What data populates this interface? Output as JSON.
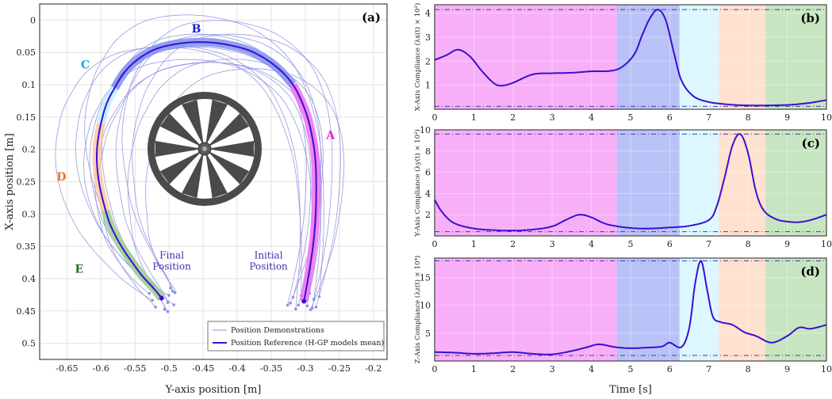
{
  "colors": {
    "reference": "#3a0fd0",
    "demonstrations": "#8f8fe0",
    "phase_A": "#f070f0",
    "phase_B": "#8090f0",
    "phase_C": "#bff0ff",
    "phase_D": "#ffc8a8",
    "phase_E": "#9bcf90",
    "label_A": "#e020c0",
    "label_B": "#2020c0",
    "label_C": "#20a0e0",
    "label_D": "#f07020",
    "label_E": "#207020",
    "final_label": "#4a2ab0"
  },
  "chart_data": [
    {
      "type": "line",
      "panel_label": "(a)",
      "xlabel": "Y-axis position [m]",
      "ylabel": "X-axis position [m]",
      "xlim": [
        -0.69,
        -0.18
      ],
      "ylim": [
        0.525,
        -0.025
      ],
      "y_reversed": true,
      "x_ticks": [
        "-0.65",
        "-0.6",
        "-0.55",
        "-0.5",
        "-0.45",
        "-0.4",
        "-0.35",
        "-0.3",
        "-0.25",
        "-0.2"
      ],
      "y_ticks": [
        "0",
        "0.05",
        "0.1",
        "0.15",
        "0.2",
        "0.25",
        "0.3",
        "0.35",
        "0.4",
        "0.45",
        "0.5"
      ],
      "grid": true,
      "legend": {
        "placement": "bottom-right",
        "entries": [
          "Position Demonstrations",
          "Position Reference (H-GP models mean)"
        ]
      },
      "reference": {
        "x": [
          -0.302,
          -0.296,
          -0.29,
          -0.286,
          -0.284,
          -0.285,
          -0.29,
          -0.3,
          -0.318,
          -0.345,
          -0.38,
          -0.42,
          -0.455,
          -0.49,
          -0.52,
          -0.545,
          -0.565,
          -0.58,
          -0.592,
          -0.6,
          -0.605,
          -0.606,
          -0.603,
          -0.598,
          -0.593,
          -0.587,
          -0.578,
          -0.567,
          -0.554,
          -0.54,
          -0.527,
          -0.517,
          -0.511
        ],
        "y": [
          0.435,
          0.4,
          0.36,
          0.32,
          0.27,
          0.22,
          0.18,
          0.14,
          0.1,
          0.07,
          0.048,
          0.037,
          0.034,
          0.037,
          0.045,
          0.06,
          0.08,
          0.105,
          0.13,
          0.16,
          0.19,
          0.22,
          0.25,
          0.275,
          0.295,
          0.315,
          0.335,
          0.355,
          0.375,
          0.395,
          0.41,
          0.422,
          0.43
        ]
      },
      "phases": [
        {
          "label": "A",
          "start": 0,
          "end": 8
        },
        {
          "label": "B",
          "start": 8,
          "end": 17
        },
        {
          "label": "C",
          "start": 17,
          "end": 19
        },
        {
          "label": "D",
          "start": 19,
          "end": 24
        },
        {
          "label": "E",
          "start": 24,
          "end": 32
        }
      ],
      "phase_labels": [
        {
          "text": "A",
          "x": -0.263,
          "y": 0.178
        },
        {
          "text": "B",
          "x": -0.46,
          "y": 0.013
        },
        {
          "text": "C",
          "x": -0.623,
          "y": 0.069
        },
        {
          "text": "D",
          "x": -0.658,
          "y": 0.242
        },
        {
          "text": "E",
          "x": -0.632,
          "y": 0.385
        }
      ],
      "annotations": [
        {
          "lines": [
            "Final",
            "Position"
          ],
          "x": -0.496,
          "y": 0.375,
          "role": "final"
        },
        {
          "lines": [
            "Initial",
            "Position"
          ],
          "x": -0.354,
          "y": 0.375,
          "role": "initial"
        }
      ],
      "demo_offsets": [
        [
          -0.01,
          0.012,
          0.018,
          -0.005
        ],
        [
          0.02,
          -0.015,
          -0.01,
          0.01
        ],
        [
          -0.022,
          0.02,
          0.006,
          0.012
        ],
        [
          0.012,
          0.025,
          -0.02,
          -0.01
        ],
        [
          0.03,
          -0.01,
          0.022,
          0.015
        ],
        [
          -0.03,
          -0.005,
          -0.015,
          0.02
        ],
        [
          0.005,
          0.035,
          0.01,
          -0.02
        ],
        [
          0.04,
          0.015,
          -0.025,
          0.005
        ],
        [
          -0.015,
          -0.025,
          0.028,
          -0.012
        ],
        [
          0.018,
          -0.03,
          0.015,
          0.018
        ],
        [
          -0.04,
          0.01,
          -0.005,
          -0.015
        ],
        [
          0.045,
          0.03,
          0.012,
          0.022
        ],
        [
          0.008,
          -0.02,
          -0.03,
          0.01
        ]
      ]
    },
    {
      "type": "line",
      "panel_label": "(b)",
      "ylabel": "X-Axis Compliance (λx(t) × 10²)",
      "xlim": [
        0,
        10
      ],
      "ylim": [
        0,
        4.35
      ],
      "x_ticks": [
        "0",
        "1",
        "2",
        "3",
        "4",
        "5",
        "6",
        "7",
        "8",
        "9",
        "10"
      ],
      "y_ticks": [
        {
          "v": 1,
          "t": "1"
        },
        {
          "v": 2,
          "t": "2"
        },
        {
          "v": 3,
          "t": "3"
        },
        {
          "v": 4,
          "t": "4"
        }
      ],
      "bounds": [
        0.12,
        4.15
      ],
      "x": [
        0,
        0.3,
        0.6,
        0.9,
        1.2,
        1.5,
        1.7,
        2,
        2.5,
        3,
        3.5,
        4,
        4.5,
        4.8,
        5.1,
        5.3,
        5.5,
        5.7,
        5.9,
        6.1,
        6.3,
        6.6,
        7,
        7.5,
        8,
        8.5,
        9,
        9.5,
        10
      ],
      "y": [
        2.05,
        2.25,
        2.48,
        2.2,
        1.6,
        1.1,
        0.98,
        1.1,
        1.45,
        1.5,
        1.52,
        1.58,
        1.6,
        1.78,
        2.3,
        3.1,
        3.8,
        4.15,
        3.7,
        2.4,
        1.2,
        0.55,
        0.3,
        0.2,
        0.16,
        0.16,
        0.18,
        0.25,
        0.38
      ],
      "grid": true
    },
    {
      "type": "line",
      "panel_label": "(c)",
      "ylabel": "Y-Axis Compliance (λy(t) × 10²)",
      "xlim": [
        0,
        10
      ],
      "ylim": [
        0,
        10
      ],
      "x_ticks": [
        "0",
        "1",
        "2",
        "3",
        "4",
        "5",
        "6",
        "7",
        "8",
        "9",
        "10"
      ],
      "y_ticks": [
        {
          "v": 2,
          "t": "2"
        },
        {
          "v": 4,
          "t": "4"
        },
        {
          "v": 6,
          "t": "6"
        },
        {
          "v": 8,
          "t": "8"
        },
        {
          "v": 10,
          "t": "10"
        }
      ],
      "bounds": [
        0.4,
        9.6
      ],
      "x": [
        0,
        0.2,
        0.5,
        1,
        1.5,
        2,
        2.5,
        3,
        3.4,
        3.7,
        4,
        4.4,
        5,
        5.5,
        6,
        6.5,
        7,
        7.2,
        7.4,
        7.6,
        7.8,
        8,
        8.2,
        8.4,
        8.7,
        9,
        9.3,
        9.6,
        10
      ],
      "y": [
        3.4,
        2.2,
        1.2,
        0.7,
        0.55,
        0.5,
        0.6,
        0.9,
        1.6,
        2.0,
        1.75,
        1.1,
        0.75,
        0.7,
        0.8,
        0.95,
        1.5,
        2.8,
        5.5,
        8.5,
        9.6,
        7.8,
        4.2,
        2.4,
        1.6,
        1.35,
        1.3,
        1.5,
        2.0
      ],
      "grid": true
    },
    {
      "type": "line",
      "panel_label": "(d)",
      "ylabel": "Z-Axis Compliance (λz(t) × 10⁴)",
      "xlabel": "Time [s]",
      "xlim": [
        0,
        10
      ],
      "ylim": [
        0,
        18.5
      ],
      "x_ticks": [
        "0",
        "1",
        "2",
        "3",
        "4",
        "5",
        "6",
        "7",
        "8",
        "9",
        "10"
      ],
      "y_ticks": [
        {
          "v": 5,
          "t": "5"
        },
        {
          "v": 10,
          "t": "10"
        },
        {
          "v": 15,
          "t": "15"
        }
      ],
      "bounds": [
        1,
        18
      ],
      "x": [
        0,
        0.5,
        1,
        1.5,
        2,
        2.5,
        3,
        3.5,
        3.9,
        4.2,
        4.6,
        5,
        5.4,
        5.8,
        6.0,
        6.3,
        6.5,
        6.65,
        6.8,
        6.95,
        7.1,
        7.3,
        7.6,
        7.9,
        8.2,
        8.6,
        9,
        9.3,
        9.6,
        10
      ],
      "y": [
        1.6,
        1.5,
        1.3,
        1.4,
        1.6,
        1.3,
        1.2,
        1.8,
        2.5,
        3.0,
        2.5,
        2.3,
        2.4,
        2.6,
        3.3,
        2.5,
        6.0,
        14.0,
        18.0,
        13.0,
        8.0,
        7.0,
        6.5,
        5.2,
        4.5,
        3.3,
        4.5,
        6.0,
        5.8,
        6.5
      ],
      "grid": true
    }
  ],
  "time_phases": [
    {
      "label": "A",
      "start": 0,
      "end": 4.65
    },
    {
      "label": "B",
      "start": 4.65,
      "end": 6.25
    },
    {
      "label": "C",
      "start": 6.25,
      "end": 7.25
    },
    {
      "label": "D",
      "start": 7.25,
      "end": 8.45
    },
    {
      "label": "E",
      "start": 8.45,
      "end": 10
    }
  ]
}
